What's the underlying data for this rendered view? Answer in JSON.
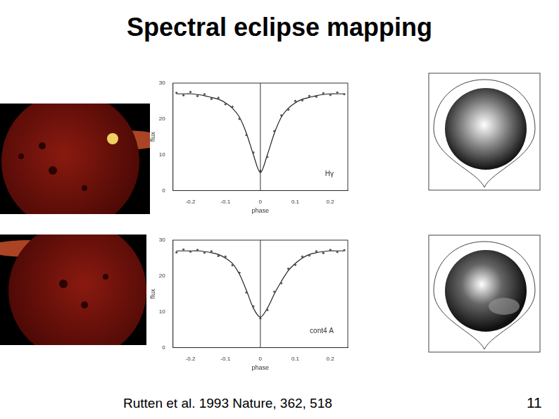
{
  "title": "Spectral eclipse mapping",
  "citation": "Rutten et al. 1993 Nature, 362, 518",
  "page_number": "11",
  "chart_data": [
    {
      "type": "line",
      "x_label": "phase",
      "y_label": "flux",
      "annotation": "Hγ",
      "x": [
        -0.24,
        -0.22,
        -0.2,
        -0.18,
        -0.16,
        -0.14,
        -0.12,
        -0.1,
        -0.08,
        -0.06,
        -0.04,
        -0.02,
        0,
        0.02,
        0.04,
        0.06,
        0.08,
        0.1,
        0.12,
        0.14,
        0.16,
        0.18,
        0.2,
        0.22,
        0.24
      ],
      "series": [
        {
          "type": "scatter",
          "marker": "circle",
          "color": "#555555",
          "values": [
            27.3,
            26.6,
            27.5,
            26.4,
            26.9,
            25.6,
            25.9,
            24.1,
            23.4,
            20,
            15.5,
            10.6,
            5.5,
            9.4,
            16.6,
            21,
            22.6,
            25,
            25.2,
            26.4,
            26.2,
            27.2,
            26.7,
            27.4,
            26.9
          ]
        },
        {
          "type": "line",
          "line_style": "solid",
          "color": "#222222",
          "values": [
            27,
            27,
            27,
            26.8,
            26.5,
            26,
            25.5,
            24.5,
            23,
            20.5,
            16,
            10,
            5,
            10,
            16,
            20.5,
            23,
            24.5,
            25.5,
            26,
            26.5,
            26.8,
            27,
            27,
            27
          ]
        }
      ],
      "xlim": [
        -0.25,
        0.25
      ],
      "xticks": [
        -0.2,
        -0.1,
        0,
        0.1,
        0.2
      ],
      "ylim": [
        0,
        30
      ],
      "yticks": [
        0,
        10,
        20,
        30
      ],
      "grid": false
    },
    {
      "type": "line",
      "x_label": "phase",
      "y_label": "flux",
      "annotation": "cont4 A",
      "x": [
        -0.24,
        -0.22,
        -0.2,
        -0.18,
        -0.16,
        -0.14,
        -0.12,
        -0.1,
        -0.08,
        -0.06,
        -0.04,
        -0.02,
        0,
        0.02,
        0.04,
        0.06,
        0.08,
        0.1,
        0.12,
        0.14,
        0.16,
        0.18,
        0.2,
        0.22,
        0.24
      ],
      "series": [
        {
          "type": "scatter",
          "marker": "circle",
          "color": "#555555",
          "values": [
            26.6,
            27.4,
            26.8,
            27.3,
            26.5,
            26.9,
            25.6,
            25.4,
            23,
            20.9,
            15.4,
            11.5,
            8.2,
            10.5,
            15.6,
            18,
            22,
            23.1,
            25.4,
            25.7,
            26.9,
            26.4,
            27.3,
            26.7,
            27.2
          ]
        },
        {
          "type": "line",
          "line_style": "solid",
          "color": "#222222",
          "values": [
            27,
            27,
            27,
            27,
            26.8,
            26.5,
            26,
            25,
            23.5,
            20.5,
            16,
            11,
            8.5,
            11,
            15,
            18.5,
            21.5,
            23.5,
            25,
            26,
            26.5,
            26.8,
            27,
            27,
            27
          ]
        }
      ],
      "xlim": [
        -0.25,
        0.25
      ],
      "xticks": [
        -0.2,
        -0.1,
        0,
        0.1,
        0.2
      ],
      "ylim": [
        0,
        30
      ],
      "yticks": [
        0,
        10,
        20,
        30
      ],
      "grid": false
    }
  ]
}
